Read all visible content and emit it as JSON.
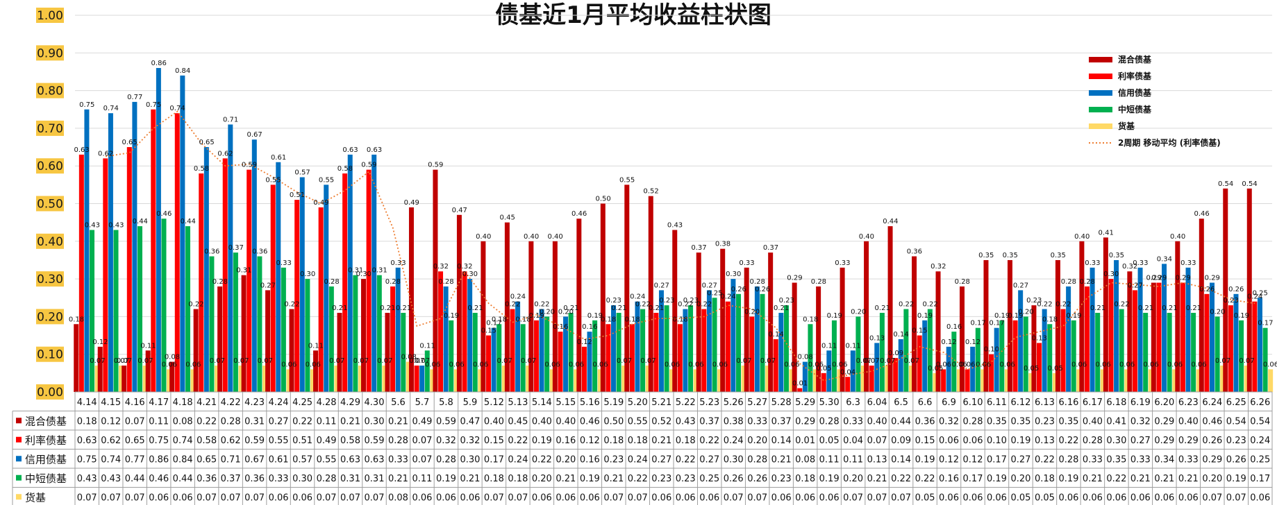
{
  "chart_data": {
    "type": "bar",
    "title": "债基近1月平均收益柱状图",
    "yticks": [
      "0.00",
      "0.10",
      "0.20",
      "0.30",
      "0.40",
      "0.50",
      "0.60",
      "0.70",
      "0.80",
      "0.90",
      "1.00"
    ],
    "ylim": [
      0,
      1.0
    ],
    "grid": true,
    "legend_position": "top-right",
    "categories": [
      "4.14",
      "4.15",
      "4.16",
      "4.17",
      "4.18",
      "4.21",
      "4.22",
      "4.23",
      "4.24",
      "4.25",
      "4.28",
      "4.29",
      "4.30",
      "5.6",
      "5.7",
      "5.8",
      "5.9",
      "5.12",
      "5.13",
      "5.14",
      "5.15",
      "5.16",
      "5.19",
      "5.20",
      "5.21",
      "5.22",
      "5.23",
      "5.26",
      "5.27",
      "5.28",
      "5.29",
      "5.30",
      "6.3",
      "6.04",
      "6.5",
      "6.6",
      "6.9",
      "6.10",
      "6.11",
      "6.12",
      "6.13",
      "6.16",
      "6.17",
      "6.18",
      "6.19",
      "6.20",
      "6.23",
      "6.24",
      "6.25",
      "6.26"
    ],
    "series": [
      {
        "name": "混合债基",
        "color": "#c00000",
        "values": [
          0.18,
          0.12,
          0.07,
          0.11,
          0.08,
          0.22,
          0.28,
          0.31,
          0.27,
          0.22,
          0.11,
          0.21,
          0.3,
          0.21,
          0.49,
          0.59,
          0.47,
          0.4,
          0.45,
          0.4,
          0.4,
          0.46,
          0.5,
          0.55,
          0.52,
          0.43,
          0.37,
          0.38,
          0.33,
          0.37,
          0.29,
          0.28,
          0.33,
          0.4,
          0.44,
          0.36,
          0.32,
          0.28,
          0.35,
          0.35,
          0.23,
          0.35,
          0.4,
          0.41,
          0.32,
          0.29,
          0.4,
          0.46,
          0.54,
          0.54
        ]
      },
      {
        "name": "利率债基",
        "color": "#ff0000",
        "values": [
          0.63,
          0.62,
          0.65,
          0.75,
          0.74,
          0.58,
          0.62,
          0.59,
          0.55,
          0.51,
          0.49,
          0.58,
          0.59,
          0.28,
          0.07,
          0.32,
          0.32,
          0.15,
          0.22,
          0.19,
          0.16,
          0.12,
          0.18,
          0.18,
          0.21,
          0.18,
          0.22,
          0.24,
          0.2,
          0.14,
          0.01,
          0.05,
          0.04,
          0.07,
          0.09,
          0.15,
          0.06,
          0.06,
          0.1,
          0.19,
          0.13,
          0.22,
          0.28,
          0.3,
          0.27,
          0.29,
          0.29,
          0.26,
          0.23,
          0.24
        ]
      },
      {
        "name": "信用债基",
        "color": "#0070c0",
        "values": [
          0.75,
          0.74,
          0.77,
          0.86,
          0.84,
          0.65,
          0.71,
          0.67,
          0.61,
          0.57,
          0.55,
          0.63,
          0.63,
          0.33,
          0.07,
          0.28,
          0.3,
          0.17,
          0.24,
          0.22,
          0.2,
          0.16,
          0.23,
          0.24,
          0.27,
          0.22,
          0.27,
          0.3,
          0.28,
          0.21,
          0.08,
          0.11,
          0.11,
          0.13,
          0.14,
          0.19,
          0.12,
          0.12,
          0.17,
          0.27,
          0.22,
          0.28,
          0.33,
          0.35,
          0.33,
          0.34,
          0.33,
          0.29,
          0.26,
          0.25
        ]
      },
      {
        "name": "中短债基",
        "color": "#00b050",
        "values": [
          0.43,
          0.43,
          0.44,
          0.46,
          0.44,
          0.36,
          0.37,
          0.36,
          0.33,
          0.3,
          0.28,
          0.31,
          0.31,
          0.21,
          0.11,
          0.19,
          0.21,
          0.18,
          0.18,
          0.2,
          0.21,
          0.19,
          0.21,
          0.22,
          0.23,
          0.23,
          0.25,
          0.26,
          0.26,
          0.23,
          0.18,
          0.19,
          0.2,
          0.21,
          0.22,
          0.22,
          0.16,
          0.17,
          0.19,
          0.2,
          0.18,
          0.19,
          0.21,
          0.22,
          0.21,
          0.21,
          0.21,
          0.2,
          0.19,
          0.17
        ]
      },
      {
        "name": "货基",
        "color": "#ffd966",
        "values": [
          0.07,
          0.07,
          0.07,
          0.06,
          0.06,
          0.07,
          0.07,
          0.07,
          0.06,
          0.06,
          0.07,
          0.07,
          0.07,
          0.08,
          0.06,
          0.06,
          0.06,
          0.07,
          0.07,
          0.06,
          0.06,
          0.06,
          0.07,
          0.07,
          0.06,
          0.06,
          0.06,
          0.07,
          0.07,
          0.06,
          0.06,
          0.06,
          0.07,
          0.07,
          0.07,
          0.05,
          0.06,
          0.06,
          0.06,
          0.05,
          0.05,
          0.06,
          0.06,
          0.06,
          0.06,
          0.06,
          0.06,
          0.07,
          0.07,
          0.06
        ]
      }
    ],
    "trendline": {
      "name": "2周期 移动平均 (利率债基)",
      "color": "#ed7d31"
    }
  }
}
